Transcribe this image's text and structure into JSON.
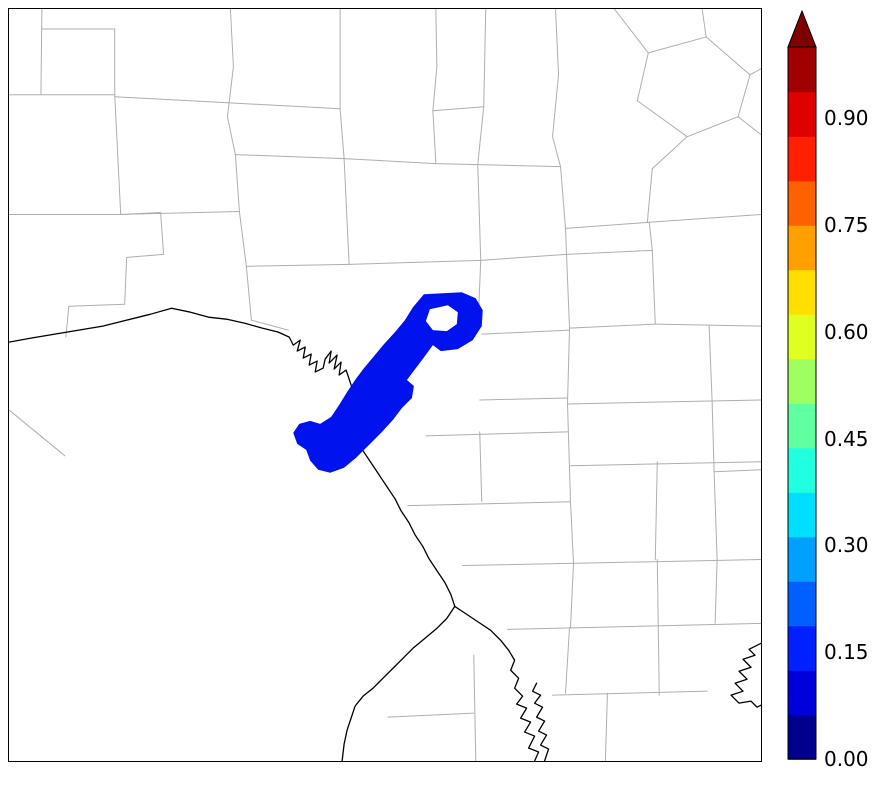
{
  "figure": {
    "background": "#ffffff"
  },
  "chart_data": {
    "type": "heatmap",
    "title": "",
    "xlabel": "",
    "ylabel": "",
    "region": {
      "color": "#0013ee"
    },
    "map": {
      "county_line_color": "#aeaeae",
      "boundary_line_color": "#000000",
      "background": "#ffffff"
    },
    "colorbar": {
      "orientation": "vertical",
      "range": [
        0.0,
        1.0
      ],
      "over_arrow_color": "#7f0000",
      "ticks": [
        {
          "label": "0.00",
          "value": 0.0
        },
        {
          "label": "0.15",
          "value": 0.15
        },
        {
          "label": "0.30",
          "value": 0.3
        },
        {
          "label": "0.45",
          "value": 0.45
        },
        {
          "label": "0.60",
          "value": 0.6
        },
        {
          "label": "0.75",
          "value": 0.75
        },
        {
          "label": "0.90",
          "value": 0.9
        }
      ],
      "colors": [
        "#00008f",
        "#0000dd",
        "#0020ff",
        "#0060ff",
        "#00a0ff",
        "#00dfff",
        "#20ffdf",
        "#60ffa0",
        "#a0ff60",
        "#dfff20",
        "#ffdf00",
        "#ffa000",
        "#ff6000",
        "#ff2000",
        "#df0000",
        "#a00000"
      ]
    }
  }
}
